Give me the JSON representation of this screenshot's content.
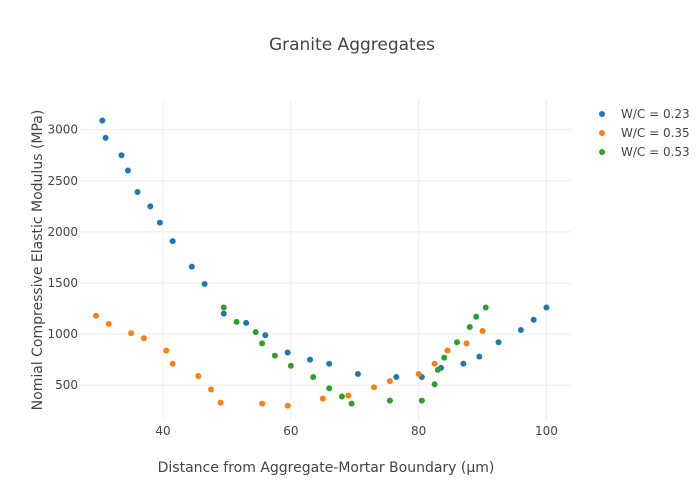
{
  "chart_data": {
    "type": "scatter",
    "title": "Granite Aggregates",
    "xlabel": "Distance from Aggregate-Mortar Boundary (μm)",
    "ylabel": "Nomial Compressive Elastic Modulus (MPa)",
    "xlim": [
      27,
      104
    ],
    "ylim": [
      160,
      3290
    ],
    "xticks": [
      40,
      60,
      80,
      100
    ],
    "yticks": [
      500,
      1000,
      1500,
      2000,
      2500,
      3000
    ],
    "grid": true,
    "legend_position": "top-right",
    "series": [
      {
        "name": "W/C = 0.23",
        "color": "#1f77b4",
        "points": [
          [
            30.5,
            3090
          ],
          [
            31.0,
            2920
          ],
          [
            33.5,
            2750
          ],
          [
            34.5,
            2600
          ],
          [
            36.0,
            2390
          ],
          [
            38.0,
            2250
          ],
          [
            39.5,
            2090
          ],
          [
            41.5,
            1910
          ],
          [
            44.5,
            1660
          ],
          [
            46.5,
            1490
          ],
          [
            49.5,
            1200
          ],
          [
            53.0,
            1110
          ],
          [
            56.0,
            990
          ],
          [
            59.5,
            820
          ],
          [
            63.0,
            750
          ],
          [
            66.0,
            710
          ],
          [
            70.5,
            610
          ],
          [
            76.5,
            580
          ],
          [
            80.5,
            580
          ],
          [
            83.5,
            670
          ],
          [
            87.0,
            710
          ],
          [
            89.5,
            780
          ],
          [
            92.5,
            920
          ],
          [
            96.0,
            1040
          ],
          [
            98.0,
            1140
          ],
          [
            100.0,
            1260
          ]
        ]
      },
      {
        "name": "W/C = 0.35",
        "color": "#ff7f0e",
        "points": [
          [
            29.5,
            1180
          ],
          [
            31.5,
            1100
          ],
          [
            35.0,
            1010
          ],
          [
            37.0,
            960
          ],
          [
            40.5,
            840
          ],
          [
            41.5,
            710
          ],
          [
            45.5,
            590
          ],
          [
            47.5,
            460
          ],
          [
            49.0,
            330
          ],
          [
            55.5,
            320
          ],
          [
            59.5,
            300
          ],
          [
            65.0,
            370
          ],
          [
            69.0,
            400
          ],
          [
            73.0,
            480
          ],
          [
            75.5,
            540
          ],
          [
            80.0,
            610
          ],
          [
            82.5,
            710
          ],
          [
            84.5,
            840
          ],
          [
            87.5,
            910
          ],
          [
            90.0,
            1030
          ]
        ]
      },
      {
        "name": "W/C = 0.53",
        "color": "#2ca02c",
        "points": [
          [
            49.5,
            1260
          ],
          [
            51.5,
            1120
          ],
          [
            54.5,
            1020
          ],
          [
            55.5,
            910
          ],
          [
            57.5,
            790
          ],
          [
            60.0,
            690
          ],
          [
            63.5,
            580
          ],
          [
            66.0,
            470
          ],
          [
            68.0,
            390
          ],
          [
            69.5,
            320
          ],
          [
            75.5,
            350
          ],
          [
            80.5,
            350
          ],
          [
            82.5,
            510
          ],
          [
            83.0,
            650
          ],
          [
            84.0,
            770
          ],
          [
            86.0,
            920
          ],
          [
            88.0,
            1070
          ],
          [
            89.0,
            1170
          ],
          [
            90.5,
            1260
          ]
        ]
      }
    ]
  }
}
